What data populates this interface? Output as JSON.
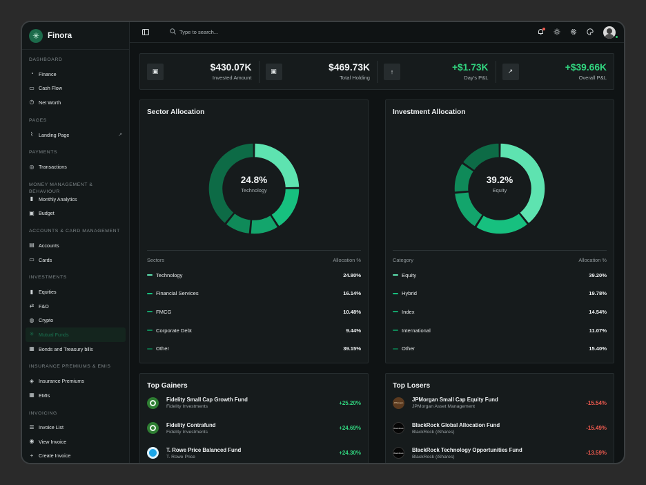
{
  "app": {
    "name": "Finora"
  },
  "sidebar": {
    "sections": [
      {
        "title": "DASHBOARD",
        "items": [
          {
            "label": "Finance",
            "icon": "gauge-icon"
          },
          {
            "label": "Cash Flow",
            "icon": "cash-icon"
          },
          {
            "label": "Net Worth",
            "icon": "clock-icon"
          }
        ]
      },
      {
        "title": "PAGES",
        "items": [
          {
            "label": "Landing Page",
            "icon": "chart-line-icon",
            "external": true
          }
        ]
      },
      {
        "title": "PAYMENTS",
        "items": [
          {
            "label": "Transactions",
            "icon": "coin-icon"
          }
        ]
      },
      {
        "title": "MONEY MANAGEMENT & BEHAVIOUR",
        "items": [
          {
            "label": "Monthly Analytics",
            "icon": "bar-chart-icon"
          },
          {
            "label": "Budget",
            "icon": "wallet-icon"
          }
        ]
      },
      {
        "title": "ACCOUNTS & CARD MANAGEMENT",
        "items": [
          {
            "label": "Accounts",
            "icon": "bank-icon"
          },
          {
            "label": "Cards",
            "icon": "card-icon"
          }
        ]
      },
      {
        "title": "INVESTMENTS",
        "items": [
          {
            "label": "Equities",
            "icon": "bar-chart-icon"
          },
          {
            "label": "F&O",
            "icon": "swap-icon"
          },
          {
            "label": "Crypto",
            "icon": "coins-icon"
          },
          {
            "label": "Mutual Funds",
            "icon": "fund-icon",
            "active": true
          },
          {
            "label": "Bonds and Treasury bills",
            "icon": "bond-icon"
          }
        ]
      },
      {
        "title": "INSURANCE PREMIUMS & EMIS",
        "items": [
          {
            "label": "Insurance Premiums",
            "icon": "shield-icon"
          },
          {
            "label": "EMIs",
            "icon": "calendar-icon"
          }
        ]
      },
      {
        "title": "INVOICING",
        "items": [
          {
            "label": "Invoice List",
            "icon": "list-icon"
          },
          {
            "label": "View Invoice",
            "icon": "eye-icon"
          },
          {
            "label": "Create Invoice",
            "icon": "plus-icon"
          }
        ]
      }
    ]
  },
  "topbar": {
    "search_placeholder": "Type to search...",
    "icons": [
      "bell-icon",
      "sun-icon",
      "gear-icon",
      "palette-icon"
    ]
  },
  "stats": [
    {
      "value": "$430.07K",
      "label": "Invested Amount",
      "icon": "wallet-icon",
      "positive": false
    },
    {
      "value": "$469.73K",
      "label": "Total Holding",
      "icon": "wallet-icon",
      "positive": false
    },
    {
      "value": "+$1.73K",
      "label": "Day's P&L",
      "icon": "arrow-up-icon",
      "positive": true
    },
    {
      "value": "+$39.66K",
      "label": "Overall P&L",
      "icon": "trend-icon",
      "positive": true
    }
  ],
  "sector": {
    "title": "Sector Allocation",
    "center_value": "24.8%",
    "center_label": "Technology",
    "col1": "Sectors",
    "col2": "Allocation %",
    "rows": [
      {
        "label": "Technology",
        "value": "24.80%",
        "pct": 24.8,
        "color": "#5ee3b0"
      },
      {
        "label": "Financial Services",
        "value": "16.14%",
        "pct": 16.14,
        "color": "#17c07f"
      },
      {
        "label": "FMCG",
        "value": "10.48%",
        "pct": 10.48,
        "color": "#13a56c"
      },
      {
        "label": "Corporate Debt",
        "value": "9.44%",
        "pct": 9.44,
        "color": "#0f8a59"
      },
      {
        "label": "Other",
        "value": "39.15%",
        "pct": 39.15,
        "color": "#0d6b46"
      }
    ]
  },
  "investment": {
    "title": "Investment Allocation",
    "center_value": "39.2%",
    "center_label": "Equity",
    "col1": "Category",
    "col2": "Allocation %",
    "rows": [
      {
        "label": "Equity",
        "value": "39.20%",
        "pct": 39.2,
        "color": "#5ee3b0"
      },
      {
        "label": "Hybrid",
        "value": "19.78%",
        "pct": 19.78,
        "color": "#17c07f"
      },
      {
        "label": "Index",
        "value": "14.54%",
        "pct": 14.54,
        "color": "#13a56c"
      },
      {
        "label": "International",
        "value": "11.07%",
        "pct": 11.07,
        "color": "#0f8a59"
      },
      {
        "label": "Other",
        "value": "15.40%",
        "pct": 15.4,
        "color": "#0d6b46"
      }
    ]
  },
  "gainers": {
    "title": "Top Gainers",
    "items": [
      {
        "name": "Fidelity Small Cap Growth Fund",
        "sub": "Fidelity Investments",
        "value": "+25.20%",
        "logo": "fid"
      },
      {
        "name": "Fidelity Contrafund",
        "sub": "Fidelity Investments",
        "value": "+24.69%",
        "logo": "fid"
      },
      {
        "name": "T. Rowe Price Balanced Fund",
        "sub": "T. Rowe Price",
        "value": "+24.30%",
        "logo": "trp"
      }
    ]
  },
  "losers": {
    "title": "Top Losers",
    "items": [
      {
        "name": "JPMorgan Small Cap Equity Fund",
        "sub": "JPMorgan Asset Management",
        "value": "-15.54%",
        "logo": "jpm",
        "logo_text": "JPMorgan"
      },
      {
        "name": "BlackRock Global Allocation Fund",
        "sub": "BlackRock (iShares)",
        "value": "-15.49%",
        "logo": "blk",
        "logo_text": "BlackRock"
      },
      {
        "name": "BlackRock Technology Opportunities Fund",
        "sub": "BlackRock (iShares)",
        "value": "-13.59%",
        "logo": "blk",
        "logo_text": "BlackRock"
      }
    ]
  }
}
